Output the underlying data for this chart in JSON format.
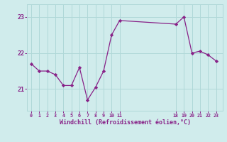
{
  "x": [
    0,
    1,
    2,
    3,
    4,
    5,
    6,
    7,
    8,
    9,
    10,
    11,
    18,
    19,
    20,
    21,
    22,
    23
  ],
  "y": [
    21.7,
    21.5,
    21.5,
    21.4,
    21.1,
    21.1,
    21.6,
    20.7,
    21.05,
    21.5,
    22.5,
    22.9,
    22.8,
    23.0,
    22.0,
    22.05,
    21.95,
    21.78
  ],
  "line_color": "#882288",
  "marker_color": "#882288",
  "bg_color": "#d0ecec",
  "grid_color": "#b0d8d8",
  "tick_color": "#882288",
  "xlabel": "Windchill (Refroidissement éolien,°C)",
  "xticks": [
    0,
    1,
    2,
    3,
    4,
    5,
    6,
    7,
    8,
    9,
    10,
    11,
    18,
    19,
    20,
    21,
    22,
    23
  ],
  "yticks": [
    21,
    22,
    23
  ],
  "ylim": [
    20.4,
    23.35
  ],
  "xlim": [
    -0.5,
    23.8
  ]
}
